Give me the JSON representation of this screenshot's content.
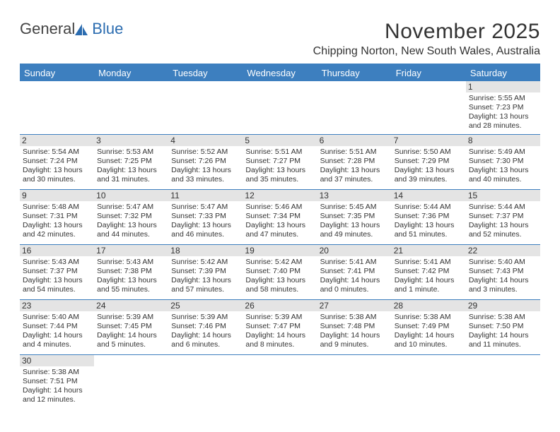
{
  "logo": {
    "general": "General",
    "blue": "Blue"
  },
  "title": {
    "month": "November 2025",
    "location": "Chipping Norton, New South Wales, Australia"
  },
  "day_headers": [
    "Sunday",
    "Monday",
    "Tuesday",
    "Wednesday",
    "Thursday",
    "Friday",
    "Saturday"
  ],
  "colors": {
    "header_bg": "#3d7fbf",
    "header_text": "#ffffff",
    "daynum_bg": "#e4e4e4",
    "border": "#3d7fbf",
    "text": "#333333",
    "logo_blue": "#2b6cb0"
  },
  "weeks": [
    [
      null,
      null,
      null,
      null,
      null,
      null,
      {
        "n": "1",
        "sunrise": "Sunrise: 5:55 AM",
        "sunset": "Sunset: 7:23 PM",
        "daylight": "Daylight: 13 hours and 28 minutes."
      }
    ],
    [
      {
        "n": "2",
        "sunrise": "Sunrise: 5:54 AM",
        "sunset": "Sunset: 7:24 PM",
        "daylight": "Daylight: 13 hours and 30 minutes."
      },
      {
        "n": "3",
        "sunrise": "Sunrise: 5:53 AM",
        "sunset": "Sunset: 7:25 PM",
        "daylight": "Daylight: 13 hours and 31 minutes."
      },
      {
        "n": "4",
        "sunrise": "Sunrise: 5:52 AM",
        "sunset": "Sunset: 7:26 PM",
        "daylight": "Daylight: 13 hours and 33 minutes."
      },
      {
        "n": "5",
        "sunrise": "Sunrise: 5:51 AM",
        "sunset": "Sunset: 7:27 PM",
        "daylight": "Daylight: 13 hours and 35 minutes."
      },
      {
        "n": "6",
        "sunrise": "Sunrise: 5:51 AM",
        "sunset": "Sunset: 7:28 PM",
        "daylight": "Daylight: 13 hours and 37 minutes."
      },
      {
        "n": "7",
        "sunrise": "Sunrise: 5:50 AM",
        "sunset": "Sunset: 7:29 PM",
        "daylight": "Daylight: 13 hours and 39 minutes."
      },
      {
        "n": "8",
        "sunrise": "Sunrise: 5:49 AM",
        "sunset": "Sunset: 7:30 PM",
        "daylight": "Daylight: 13 hours and 40 minutes."
      }
    ],
    [
      {
        "n": "9",
        "sunrise": "Sunrise: 5:48 AM",
        "sunset": "Sunset: 7:31 PM",
        "daylight": "Daylight: 13 hours and 42 minutes."
      },
      {
        "n": "10",
        "sunrise": "Sunrise: 5:47 AM",
        "sunset": "Sunset: 7:32 PM",
        "daylight": "Daylight: 13 hours and 44 minutes."
      },
      {
        "n": "11",
        "sunrise": "Sunrise: 5:47 AM",
        "sunset": "Sunset: 7:33 PM",
        "daylight": "Daylight: 13 hours and 46 minutes."
      },
      {
        "n": "12",
        "sunrise": "Sunrise: 5:46 AM",
        "sunset": "Sunset: 7:34 PM",
        "daylight": "Daylight: 13 hours and 47 minutes."
      },
      {
        "n": "13",
        "sunrise": "Sunrise: 5:45 AM",
        "sunset": "Sunset: 7:35 PM",
        "daylight": "Daylight: 13 hours and 49 minutes."
      },
      {
        "n": "14",
        "sunrise": "Sunrise: 5:44 AM",
        "sunset": "Sunset: 7:36 PM",
        "daylight": "Daylight: 13 hours and 51 minutes."
      },
      {
        "n": "15",
        "sunrise": "Sunrise: 5:44 AM",
        "sunset": "Sunset: 7:37 PM",
        "daylight": "Daylight: 13 hours and 52 minutes."
      }
    ],
    [
      {
        "n": "16",
        "sunrise": "Sunrise: 5:43 AM",
        "sunset": "Sunset: 7:37 PM",
        "daylight": "Daylight: 13 hours and 54 minutes."
      },
      {
        "n": "17",
        "sunrise": "Sunrise: 5:43 AM",
        "sunset": "Sunset: 7:38 PM",
        "daylight": "Daylight: 13 hours and 55 minutes."
      },
      {
        "n": "18",
        "sunrise": "Sunrise: 5:42 AM",
        "sunset": "Sunset: 7:39 PM",
        "daylight": "Daylight: 13 hours and 57 minutes."
      },
      {
        "n": "19",
        "sunrise": "Sunrise: 5:42 AM",
        "sunset": "Sunset: 7:40 PM",
        "daylight": "Daylight: 13 hours and 58 minutes."
      },
      {
        "n": "20",
        "sunrise": "Sunrise: 5:41 AM",
        "sunset": "Sunset: 7:41 PM",
        "daylight": "Daylight: 14 hours and 0 minutes."
      },
      {
        "n": "21",
        "sunrise": "Sunrise: 5:41 AM",
        "sunset": "Sunset: 7:42 PM",
        "daylight": "Daylight: 14 hours and 1 minute."
      },
      {
        "n": "22",
        "sunrise": "Sunrise: 5:40 AM",
        "sunset": "Sunset: 7:43 PM",
        "daylight": "Daylight: 14 hours and 3 minutes."
      }
    ],
    [
      {
        "n": "23",
        "sunrise": "Sunrise: 5:40 AM",
        "sunset": "Sunset: 7:44 PM",
        "daylight": "Daylight: 14 hours and 4 minutes."
      },
      {
        "n": "24",
        "sunrise": "Sunrise: 5:39 AM",
        "sunset": "Sunset: 7:45 PM",
        "daylight": "Daylight: 14 hours and 5 minutes."
      },
      {
        "n": "25",
        "sunrise": "Sunrise: 5:39 AM",
        "sunset": "Sunset: 7:46 PM",
        "daylight": "Daylight: 14 hours and 6 minutes."
      },
      {
        "n": "26",
        "sunrise": "Sunrise: 5:39 AM",
        "sunset": "Sunset: 7:47 PM",
        "daylight": "Daylight: 14 hours and 8 minutes."
      },
      {
        "n": "27",
        "sunrise": "Sunrise: 5:38 AM",
        "sunset": "Sunset: 7:48 PM",
        "daylight": "Daylight: 14 hours and 9 minutes."
      },
      {
        "n": "28",
        "sunrise": "Sunrise: 5:38 AM",
        "sunset": "Sunset: 7:49 PM",
        "daylight": "Daylight: 14 hours and 10 minutes."
      },
      {
        "n": "29",
        "sunrise": "Sunrise: 5:38 AM",
        "sunset": "Sunset: 7:50 PM",
        "daylight": "Daylight: 14 hours and 11 minutes."
      }
    ],
    [
      {
        "n": "30",
        "sunrise": "Sunrise: 5:38 AM",
        "sunset": "Sunset: 7:51 PM",
        "daylight": "Daylight: 14 hours and 12 minutes."
      },
      null,
      null,
      null,
      null,
      null,
      null
    ]
  ]
}
